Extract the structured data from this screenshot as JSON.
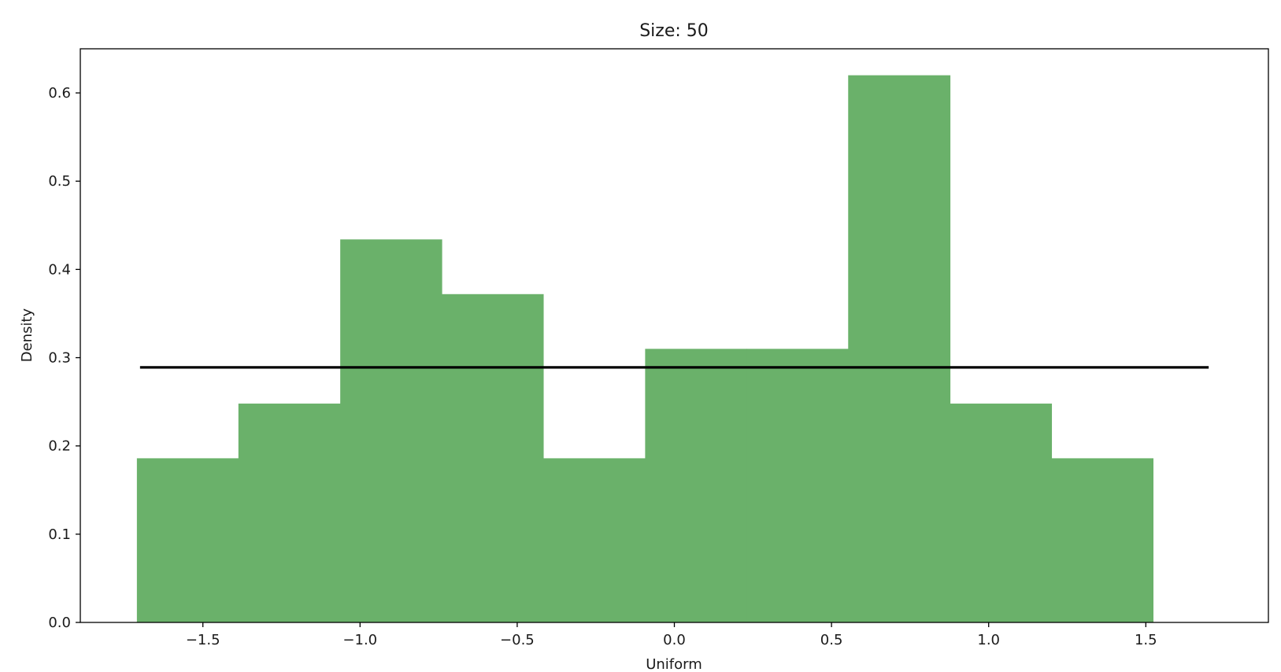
{
  "chart_data": {
    "type": "bar",
    "title": "Size: 50",
    "xlabel": "Uniform",
    "ylabel": "Density",
    "xlim": [
      -1.89,
      1.89
    ],
    "ylim": [
      0,
      0.65
    ],
    "bin_edges": [
      -1.71,
      -1.387,
      -1.063,
      -0.74,
      -0.417,
      -0.093,
      0.23,
      0.553,
      0.877,
      1.2,
      1.523
    ],
    "values": [
      0.186,
      0.248,
      0.434,
      0.372,
      0.186,
      0.31,
      0.31,
      0.62,
      0.248,
      0.186
    ],
    "bar_color": "#6ab16a",
    "reference_line": {
      "x": [
        -1.7,
        1.7
      ],
      "y": 0.289,
      "color": "#000000"
    },
    "xticks": [
      -1.5,
      -1.0,
      -0.5,
      0.0,
      0.5,
      1.0,
      1.5
    ],
    "xtick_labels": [
      "−1.5",
      "−1.0",
      "−0.5",
      "0.0",
      "0.5",
      "1.0",
      "1.5"
    ],
    "yticks": [
      0.0,
      0.1,
      0.2,
      0.3,
      0.4,
      0.5,
      0.6
    ],
    "ytick_labels": [
      "0.0",
      "0.1",
      "0.2",
      "0.3",
      "0.4",
      "0.5",
      "0.6"
    ],
    "grid": false,
    "legend": "none"
  }
}
